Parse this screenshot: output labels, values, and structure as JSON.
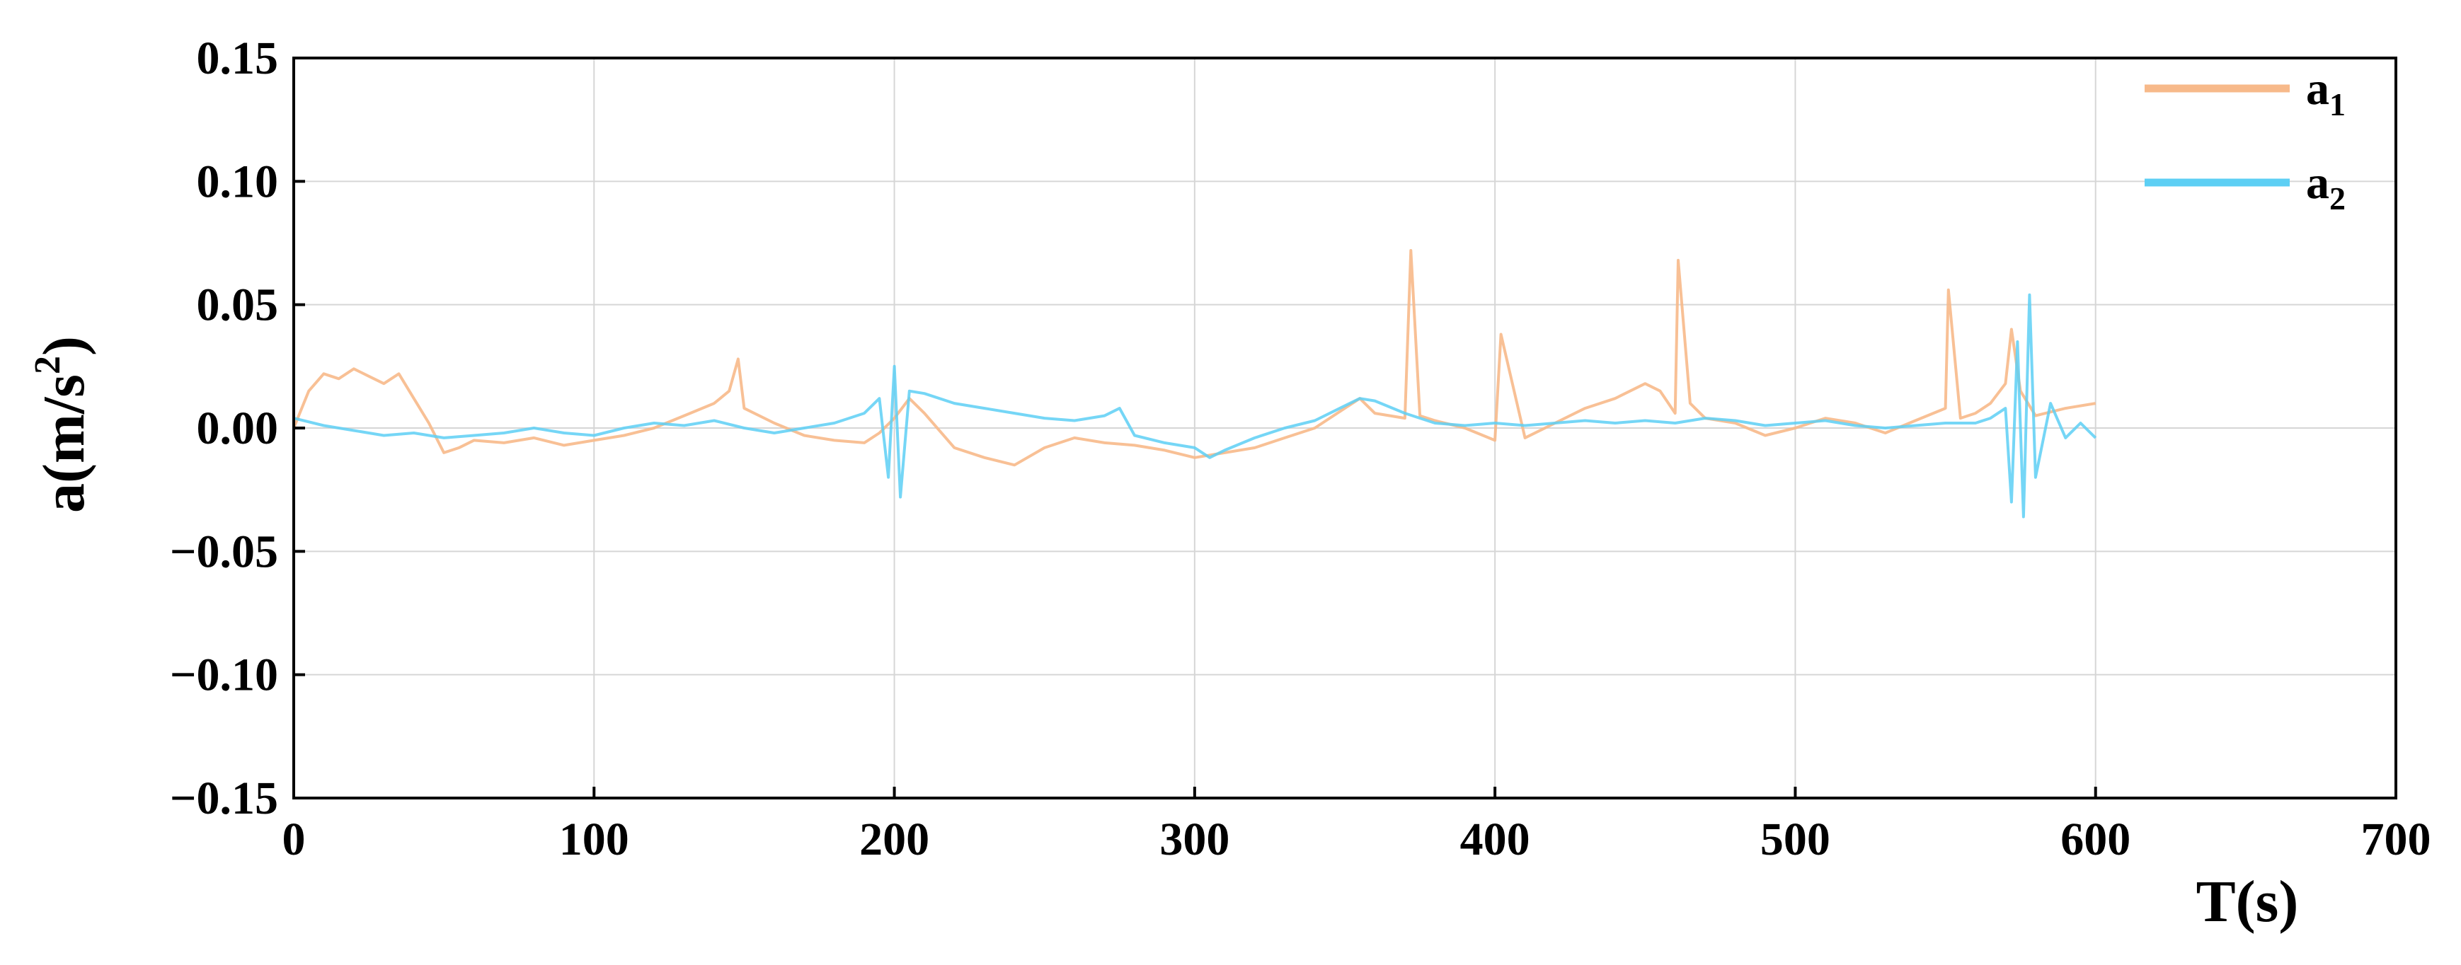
{
  "chart_data": {
    "type": "line",
    "title": "",
    "xlabel": "T(s)",
    "ylabel_main": "a(m/s",
    "ylabel_sup": "2",
    "ylabel_close": ")",
    "xlim": [
      0,
      700
    ],
    "ylim": [
      -0.15,
      0.15
    ],
    "grid": true,
    "legend_position": "top-right",
    "x_ticks": [
      0,
      100,
      200,
      300,
      400,
      500,
      600,
      700
    ],
    "x_tick_labels": [
      "0",
      "100",
      "200",
      "300",
      "400",
      "500",
      "600",
      "700"
    ],
    "y_ticks": [
      0.15,
      0.1,
      0.05,
      0.0,
      -0.05,
      -0.1,
      -0.15
    ],
    "y_tick_labels": [
      "0.15",
      "0.10",
      "0.05",
      "0.00",
      "−0.05",
      "−0.10",
      "−0.15"
    ],
    "series": [
      {
        "name": "a1",
        "legend_main": "a",
        "legend_sub": "1",
        "color": "#f7b98a",
        "x": [
          0,
          5,
          10,
          15,
          20,
          25,
          30,
          35,
          40,
          45,
          50,
          55,
          60,
          70,
          80,
          90,
          100,
          110,
          120,
          130,
          140,
          145,
          148,
          150,
          160,
          170,
          180,
          190,
          195,
          200,
          205,
          210,
          220,
          230,
          240,
          250,
          260,
          270,
          280,
          290,
          300,
          310,
          320,
          330,
          340,
          350,
          355,
          360,
          370,
          372,
          375,
          380,
          390,
          400,
          402,
          410,
          420,
          430,
          440,
          450,
          455,
          460,
          461,
          465,
          470,
          480,
          490,
          500,
          510,
          520,
          530,
          540,
          550,
          551,
          555,
          560,
          565,
          570,
          572,
          575,
          580,
          590,
          600
        ],
        "values": [
          0.0,
          0.015,
          0.022,
          0.02,
          0.024,
          0.021,
          0.018,
          0.022,
          0.012,
          0.002,
          -0.01,
          -0.008,
          -0.005,
          -0.006,
          -0.004,
          -0.007,
          -0.005,
          -0.003,
          0.0,
          0.005,
          0.01,
          0.015,
          0.028,
          0.008,
          0.002,
          -0.003,
          -0.005,
          -0.006,
          -0.002,
          0.004,
          0.012,
          0.006,
          -0.008,
          -0.012,
          -0.015,
          -0.008,
          -0.004,
          -0.006,
          -0.007,
          -0.009,
          -0.012,
          -0.01,
          -0.008,
          -0.004,
          0.0,
          0.008,
          0.012,
          0.006,
          0.004,
          0.072,
          0.005,
          0.003,
          0.0,
          -0.005,
          0.038,
          -0.004,
          0.002,
          0.008,
          0.012,
          0.018,
          0.015,
          0.006,
          0.068,
          0.01,
          0.004,
          0.002,
          -0.003,
          0.0,
          0.004,
          0.002,
          -0.002,
          0.003,
          0.008,
          0.056,
          0.004,
          0.006,
          0.01,
          0.018,
          0.04,
          0.015,
          0.005,
          0.008,
          0.01
        ]
      },
      {
        "name": "a2",
        "legend_main": "a",
        "legend_sub": "2",
        "color": "#5dcff4",
        "x": [
          0,
          10,
          20,
          30,
          40,
          50,
          60,
          70,
          80,
          90,
          100,
          110,
          120,
          130,
          140,
          150,
          160,
          170,
          180,
          190,
          195,
          198,
          200,
          202,
          205,
          210,
          220,
          230,
          240,
          250,
          260,
          270,
          275,
          280,
          290,
          300,
          305,
          310,
          320,
          330,
          340,
          350,
          355,
          360,
          370,
          380,
          390,
          400,
          410,
          420,
          430,
          440,
          450,
          460,
          470,
          480,
          490,
          500,
          510,
          520,
          530,
          540,
          550,
          560,
          565,
          570,
          572,
          574,
          576,
          578,
          580,
          585,
          590,
          595,
          600
        ],
        "values": [
          0.004,
          0.001,
          -0.001,
          -0.003,
          -0.002,
          -0.004,
          -0.003,
          -0.002,
          0.0,
          -0.002,
          -0.003,
          0.0,
          0.002,
          0.001,
          0.003,
          0.0,
          -0.002,
          0.0,
          0.002,
          0.006,
          0.012,
          -0.02,
          0.025,
          -0.028,
          0.015,
          0.014,
          0.01,
          0.008,
          0.006,
          0.004,
          0.003,
          0.005,
          0.008,
          -0.003,
          -0.006,
          -0.008,
          -0.012,
          -0.009,
          -0.004,
          0.0,
          0.003,
          0.009,
          0.012,
          0.011,
          0.006,
          0.002,
          0.001,
          0.002,
          0.001,
          0.002,
          0.003,
          0.002,
          0.003,
          0.002,
          0.004,
          0.003,
          0.001,
          0.002,
          0.003,
          0.001,
          0.0,
          0.001,
          0.002,
          0.002,
          0.004,
          0.008,
          -0.03,
          0.035,
          -0.036,
          0.054,
          -0.02,
          0.01,
          -0.004,
          0.002,
          -0.004
        ]
      }
    ]
  }
}
